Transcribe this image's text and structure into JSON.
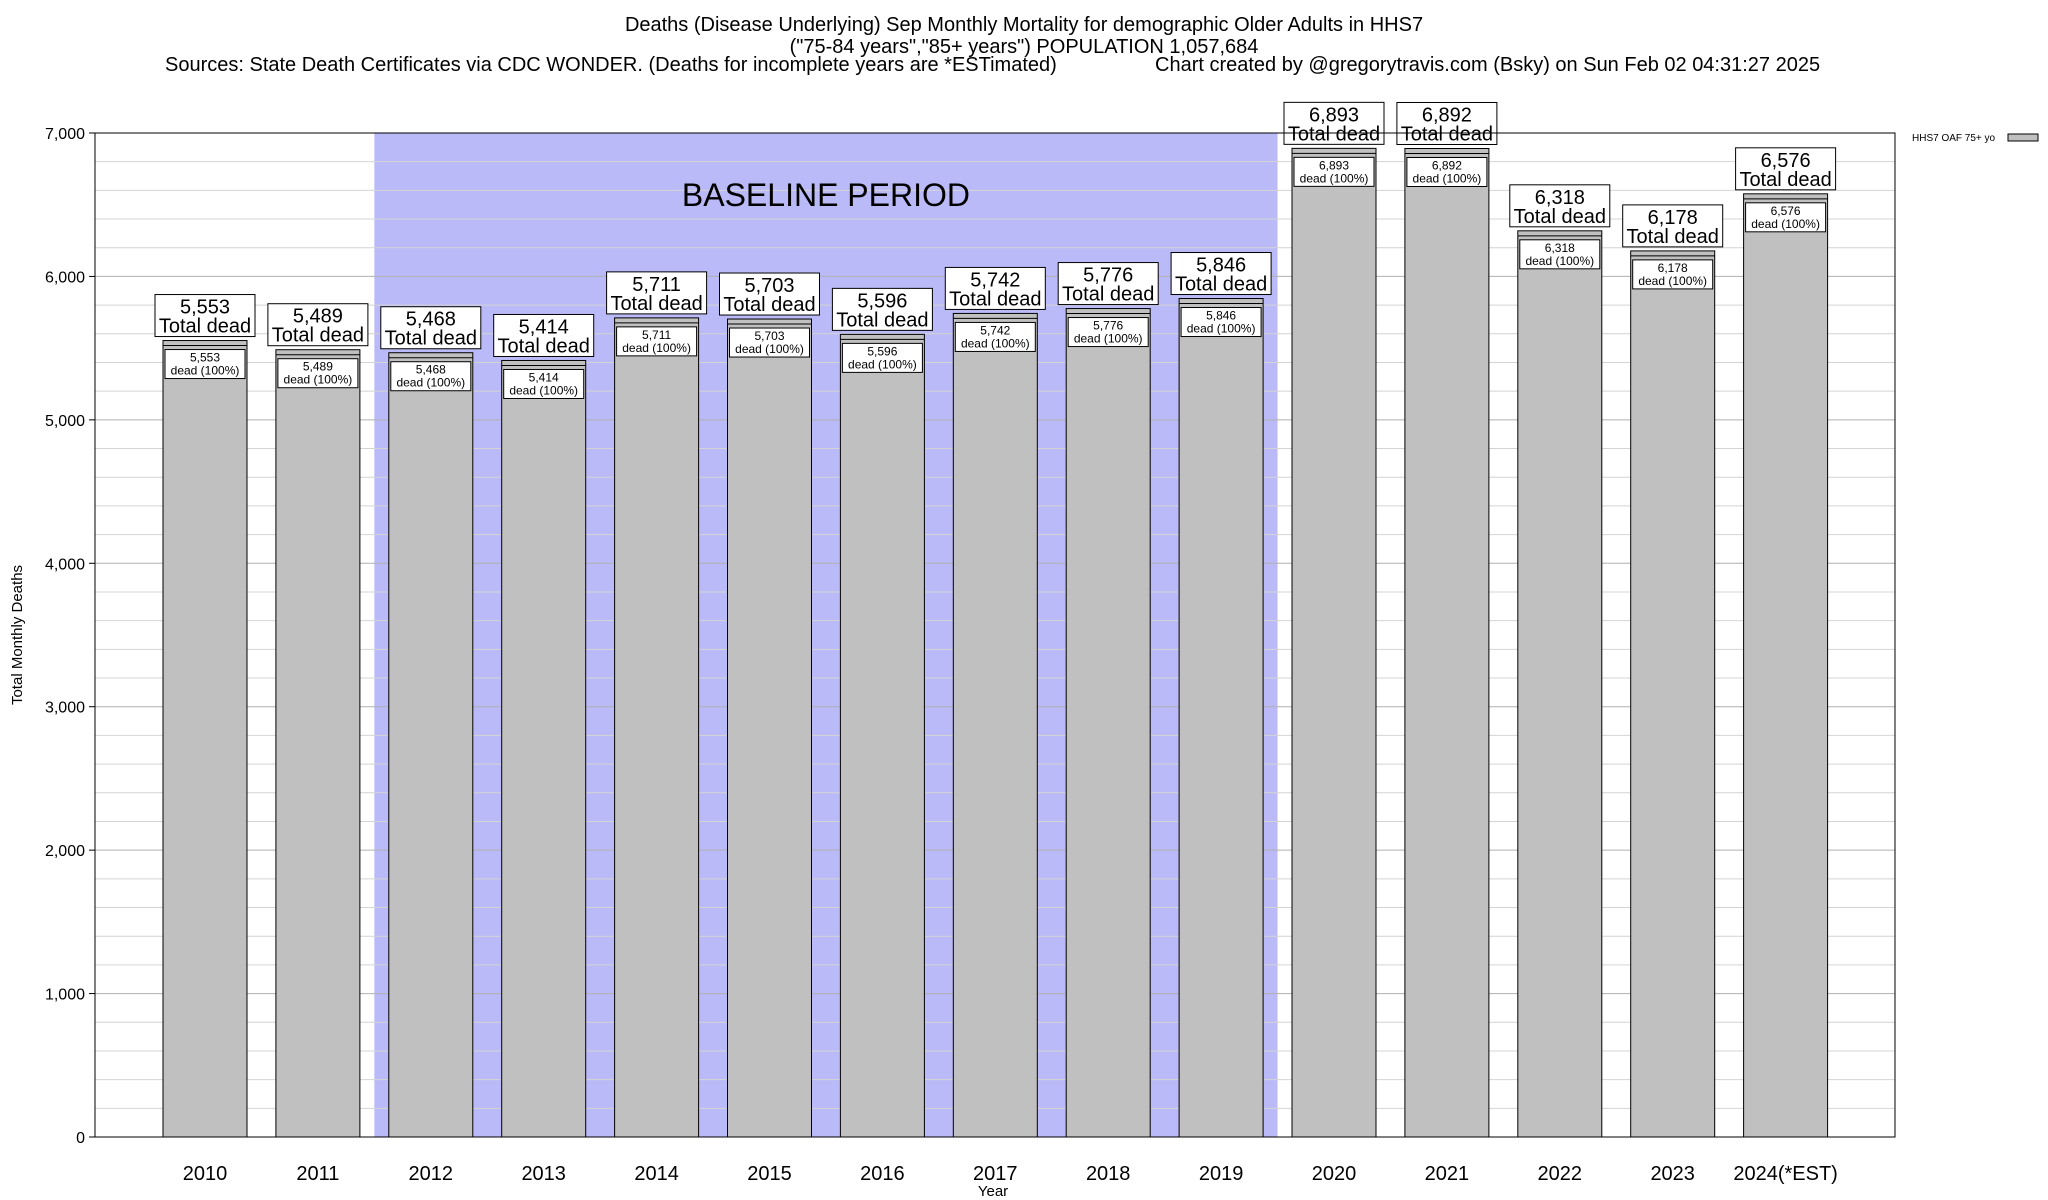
{
  "header": {
    "title_line1": "Deaths (Disease Underlying) Sep Monthly Mortality for demographic Older Adults in HHS7",
    "title_line2": "(\"75-84 years\",\"85+ years\") POPULATION 1,057,684",
    "sources": "Sources: State Death Certificates via CDC WONDER. (Deaths for incomplete years are *ESTimated)",
    "created_by": "Chart created by @gregorytravis.com (Bsky) on Sun Feb 02 04:31:27 2025"
  },
  "chart_data": {
    "type": "bar",
    "xlabel": "Year",
    "ylabel": "Total Monthly Deaths",
    "ylim": [
      0,
      7000
    ],
    "y_ticks": [
      0,
      1000,
      2000,
      3000,
      4000,
      5000,
      6000,
      7000
    ],
    "y_tick_labels": [
      "0",
      "1,000",
      "2,000",
      "3,000",
      "4,000",
      "5,000",
      "6,000",
      "7,000"
    ],
    "categories": [
      "2010",
      "2011",
      "2012",
      "2013",
      "2014",
      "2015",
      "2016",
      "2017",
      "2018",
      "2019",
      "2020",
      "2021",
      "2022",
      "2023",
      "2024(*EST)"
    ],
    "values": [
      5553,
      5489,
      5468,
      5414,
      5711,
      5703,
      5596,
      5742,
      5776,
      5846,
      6893,
      6892,
      6318,
      6178,
      6576
    ],
    "value_labels": [
      "5,553",
      "5,489",
      "5,468",
      "5,414",
      "5,711",
      "5,703",
      "5,596",
      "5,742",
      "5,776",
      "5,846",
      "6,893",
      "6,892",
      "6,318",
      "6,178",
      "6,576"
    ],
    "total_label_suffix": "Total dead",
    "inner_label_suffix": "dead (100%)",
    "baseline_period": {
      "label": "BASELINE PERIOD",
      "start": "2012",
      "end": "2019"
    },
    "legend": {
      "label": "HHS7 OAF 75+ yo",
      "position": "top-right"
    },
    "colors": {
      "bar": "#c0c0c0",
      "baseline": "#babaf8",
      "grid": "#c8c8c8"
    }
  }
}
